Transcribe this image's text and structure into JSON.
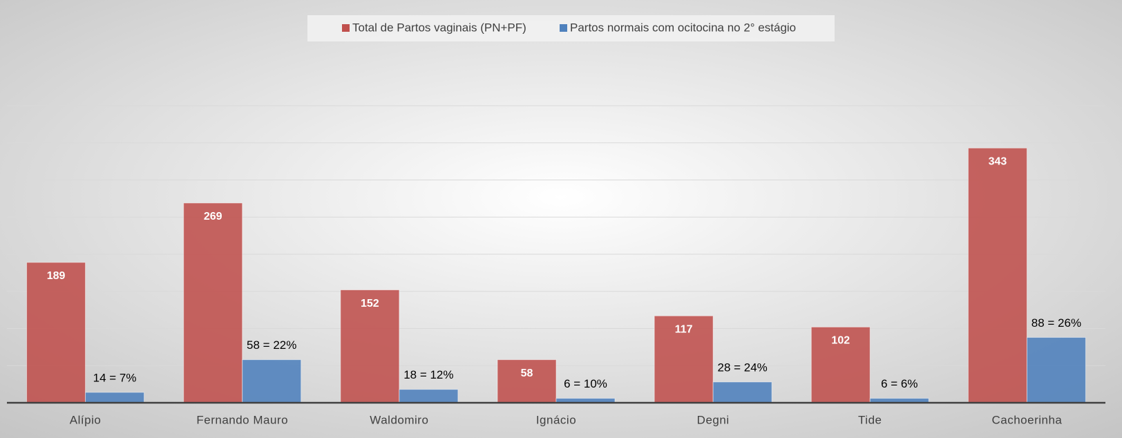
{
  "chart_data": {
    "type": "bar",
    "categories": [
      "Alípio",
      "Fernando Mauro",
      "Waldomiro",
      "Ignácio",
      "Degni",
      "Tide",
      "Cachoerinha"
    ],
    "series": [
      {
        "name": "Total de Partos vaginais (PN+PF)",
        "color": "#c0504d",
        "values": [
          189,
          269,
          152,
          58,
          117,
          102,
          343
        ]
      },
      {
        "name": "Partos normais com ocitocina no 2° estágio",
        "color": "#4f81bd",
        "values": [
          14,
          58,
          18,
          6,
          28,
          6,
          88
        ],
        "value_labels": [
          "14 = 7%",
          "58 = 22%",
          "18 = 12%",
          "6 = 10%",
          "28 = 24%",
          "6 = 6%",
          "88 = 26%"
        ]
      }
    ],
    "ylim": [
      0,
      400
    ],
    "yticks": [
      0,
      50,
      100,
      150,
      200,
      250,
      300,
      350,
      400
    ],
    "grid": true,
    "legend": "top"
  }
}
